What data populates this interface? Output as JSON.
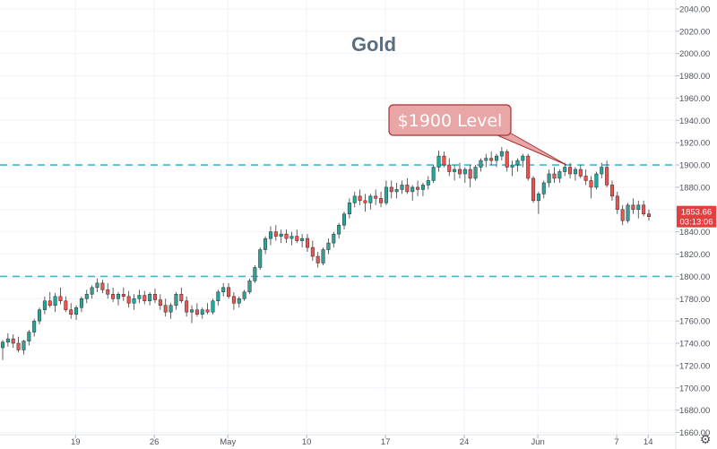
{
  "chart_data": {
    "type": "candlestick",
    "title": "Gold",
    "ylim": [
      1658,
      2048
    ],
    "y_ticks": [
      1660,
      1680,
      1700,
      1720,
      1740,
      1760,
      1780,
      1800,
      1820,
      1840,
      1860,
      1880,
      1900,
      1920,
      1940,
      1960,
      1980,
      2000,
      2020,
      2040
    ],
    "x_ticks": [
      "19",
      "26",
      "May",
      "10",
      "17",
      "24",
      "Jun",
      "7",
      "14"
    ],
    "horizontal_lines": [
      1900,
      1800
    ],
    "annotation": {
      "text": "$1900 Level",
      "points_to": 1900
    },
    "last_price": "1853.66",
    "countdown": "03:13:06",
    "candles": [
      [
        1736,
        1743,
        1725,
        1741
      ],
      [
        1741,
        1749,
        1737,
        1744
      ],
      [
        1744,
        1748,
        1736,
        1740
      ],
      [
        1740,
        1746,
        1732,
        1734
      ],
      [
        1734,
        1743,
        1730,
        1742
      ],
      [
        1742,
        1752,
        1738,
        1750
      ],
      [
        1750,
        1762,
        1746,
        1760
      ],
      [
        1760,
        1772,
        1757,
        1770
      ],
      [
        1770,
        1782,
        1766,
        1778
      ],
      [
        1778,
        1786,
        1772,
        1774
      ],
      [
        1774,
        1785,
        1768,
        1782
      ],
      [
        1782,
        1790,
        1775,
        1778
      ],
      [
        1778,
        1782,
        1768,
        1770
      ],
      [
        1770,
        1776,
        1762,
        1766
      ],
      [
        1766,
        1774,
        1761,
        1772
      ],
      [
        1772,
        1782,
        1768,
        1780
      ],
      [
        1780,
        1788,
        1776,
        1784
      ],
      [
        1784,
        1792,
        1780,
        1790
      ],
      [
        1790,
        1798,
        1786,
        1794
      ],
      [
        1794,
        1797,
        1785,
        1788
      ],
      [
        1788,
        1794,
        1780,
        1784
      ],
      [
        1784,
        1790,
        1777,
        1780
      ],
      [
        1780,
        1786,
        1774,
        1784
      ],
      [
        1784,
        1790,
        1778,
        1782
      ],
      [
        1782,
        1787,
        1772,
        1776
      ],
      [
        1776,
        1784,
        1770,
        1780
      ],
      [
        1780,
        1788,
        1776,
        1783
      ],
      [
        1783,
        1787,
        1775,
        1778
      ],
      [
        1778,
        1786,
        1774,
        1784
      ],
      [
        1784,
        1789,
        1776,
        1779
      ],
      [
        1779,
        1784,
        1770,
        1774
      ],
      [
        1774,
        1780,
        1764,
        1768
      ],
      [
        1768,
        1776,
        1762,
        1774
      ],
      [
        1774,
        1786,
        1770,
        1784
      ],
      [
        1784,
        1790,
        1776,
        1778
      ],
      [
        1778,
        1782,
        1764,
        1768
      ],
      [
        1768,
        1774,
        1758,
        1770
      ],
      [
        1770,
        1776,
        1764,
        1766
      ],
      [
        1766,
        1772,
        1762,
        1770
      ],
      [
        1770,
        1776,
        1766,
        1768
      ],
      [
        1768,
        1780,
        1766,
        1778
      ],
      [
        1778,
        1788,
        1774,
        1786
      ],
      [
        1786,
        1794,
        1782,
        1790
      ],
      [
        1790,
        1794,
        1780,
        1782
      ],
      [
        1782,
        1786,
        1770,
        1776
      ],
      [
        1776,
        1782,
        1772,
        1780
      ],
      [
        1780,
        1788,
        1778,
        1786
      ],
      [
        1786,
        1798,
        1784,
        1796
      ],
      [
        1796,
        1810,
        1794,
        1808
      ],
      [
        1808,
        1826,
        1806,
        1824
      ],
      [
        1824,
        1836,
        1820,
        1834
      ],
      [
        1834,
        1845,
        1828,
        1840
      ],
      [
        1840,
        1846,
        1832,
        1836
      ],
      [
        1836,
        1842,
        1830,
        1838
      ],
      [
        1838,
        1842,
        1830,
        1834
      ],
      [
        1834,
        1840,
        1828,
        1836
      ],
      [
        1836,
        1842,
        1830,
        1832
      ],
      [
        1832,
        1838,
        1826,
        1834
      ],
      [
        1834,
        1838,
        1822,
        1826
      ],
      [
        1826,
        1832,
        1814,
        1818
      ],
      [
        1818,
        1822,
        1808,
        1812
      ],
      [
        1812,
        1826,
        1810,
        1824
      ],
      [
        1824,
        1834,
        1820,
        1830
      ],
      [
        1830,
        1840,
        1826,
        1838
      ],
      [
        1838,
        1848,
        1834,
        1846
      ],
      [
        1846,
        1858,
        1842,
        1856
      ],
      [
        1856,
        1870,
        1852,
        1866
      ],
      [
        1866,
        1876,
        1862,
        1872
      ],
      [
        1872,
        1878,
        1864,
        1868
      ],
      [
        1868,
        1874,
        1858,
        1866
      ],
      [
        1866,
        1874,
        1860,
        1872
      ],
      [
        1872,
        1878,
        1864,
        1870
      ],
      [
        1870,
        1876,
        1862,
        1866
      ],
      [
        1866,
        1886,
        1864,
        1880
      ],
      [
        1880,
        1886,
        1870,
        1876
      ],
      [
        1876,
        1884,
        1870,
        1878
      ],
      [
        1878,
        1886,
        1874,
        1882
      ],
      [
        1882,
        1888,
        1874,
        1876
      ],
      [
        1876,
        1882,
        1868,
        1880
      ],
      [
        1880,
        1886,
        1872,
        1878
      ],
      [
        1878,
        1884,
        1872,
        1882
      ],
      [
        1882,
        1890,
        1878,
        1886
      ],
      [
        1886,
        1900,
        1884,
        1898
      ],
      [
        1898,
        1913,
        1894,
        1908
      ],
      [
        1908,
        1912,
        1898,
        1900
      ],
      [
        1900,
        1906,
        1890,
        1894
      ],
      [
        1894,
        1900,
        1886,
        1896
      ],
      [
        1896,
        1902,
        1888,
        1892
      ],
      [
        1892,
        1898,
        1884,
        1896
      ],
      [
        1896,
        1900,
        1880,
        1888
      ],
      [
        1888,
        1900,
        1886,
        1898
      ],
      [
        1898,
        1906,
        1894,
        1904
      ],
      [
        1904,
        1910,
        1898,
        1906
      ],
      [
        1906,
        1912,
        1900,
        1904
      ],
      [
        1904,
        1910,
        1898,
        1908
      ],
      [
        1908,
        1916,
        1904,
        1912
      ],
      [
        1912,
        1914,
        1894,
        1898
      ],
      [
        1898,
        1904,
        1890,
        1900
      ],
      [
        1900,
        1906,
        1894,
        1904
      ],
      [
        1904,
        1910,
        1898,
        1908
      ],
      [
        1908,
        1910,
        1886,
        1888
      ],
      [
        1888,
        1890,
        1866,
        1868
      ],
      [
        1868,
        1876,
        1856,
        1874
      ],
      [
        1874,
        1886,
        1870,
        1884
      ],
      [
        1884,
        1896,
        1880,
        1892
      ],
      [
        1892,
        1898,
        1884,
        1888
      ],
      [
        1888,
        1896,
        1884,
        1894
      ],
      [
        1894,
        1902,
        1890,
        1898
      ],
      [
        1898,
        1902,
        1888,
        1892
      ],
      [
        1892,
        1898,
        1886,
        1896
      ],
      [
        1896,
        1900,
        1888,
        1890
      ],
      [
        1890,
        1896,
        1882,
        1886
      ],
      [
        1886,
        1890,
        1870,
        1880
      ],
      [
        1880,
        1894,
        1878,
        1892
      ],
      [
        1892,
        1902,
        1888,
        1898
      ],
      [
        1898,
        1904,
        1880,
        1882
      ],
      [
        1882,
        1886,
        1868,
        1872
      ],
      [
        1872,
        1876,
        1856,
        1860
      ],
      [
        1860,
        1864,
        1846,
        1850
      ],
      [
        1850,
        1866,
        1848,
        1864
      ],
      [
        1864,
        1870,
        1856,
        1860
      ],
      [
        1860,
        1868,
        1852,
        1864
      ],
      [
        1864,
        1868,
        1854,
        1856
      ],
      [
        1856,
        1860,
        1850,
        1853.66
      ]
    ]
  }
}
